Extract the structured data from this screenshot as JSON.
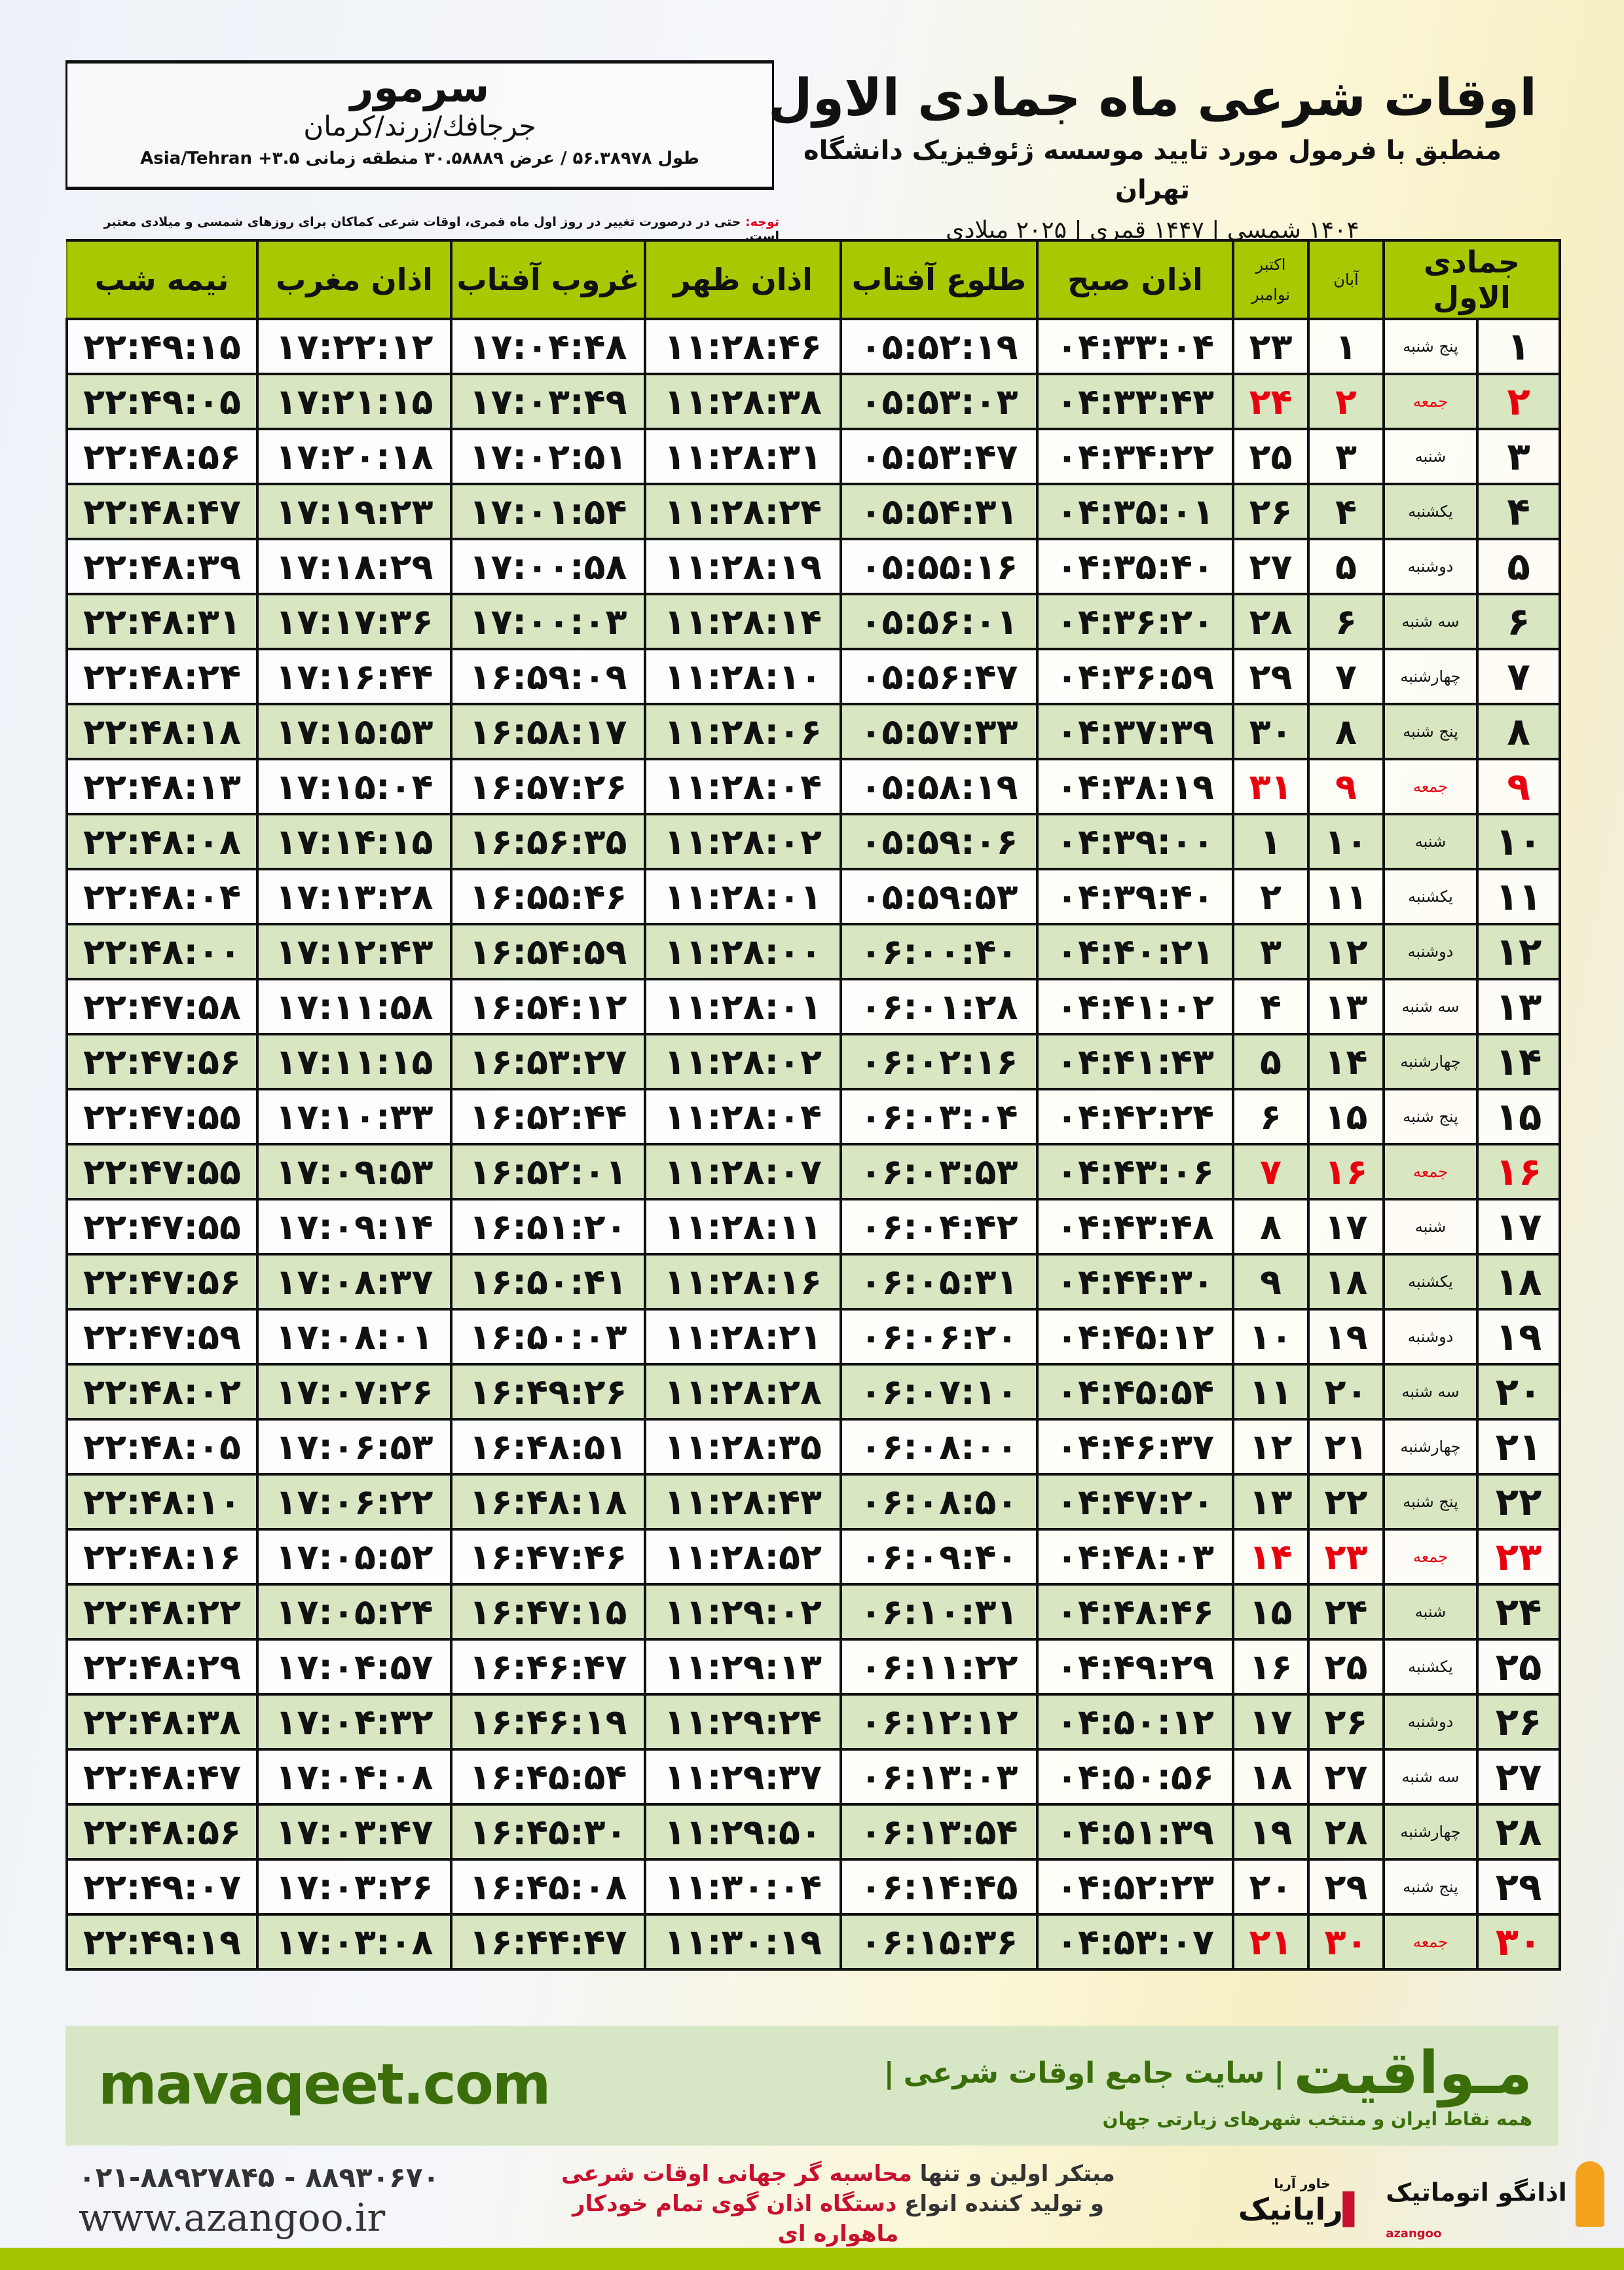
{
  "location": {
    "city": "سرمور",
    "region": "جرجافك/زرند/كرمان",
    "coords": "طول ۵۶.۳۸۹۷۸ / عرض ۳۰.۵۸۸۸۹ منطقه زمانی ۳.۵+ Asia/Tehran"
  },
  "header": {
    "title": "اوقات شرعی ماه جمادی الاول",
    "subtitle": "منطبق با فرمول مورد تایید موسسه ژئوفیزیک دانشگاه تهران",
    "years": "۱۴۰۴ شمسی | ۱۴۴۷ قمری | ۲۰۲۵ میلادی"
  },
  "note": {
    "label": "توجه:",
    "text": " حتی در درصورت تغییر در روز اول ماه قمری، اوقات شرعی کماکان برای روزهای شمسی و میلادی معتبر است."
  },
  "colors": {
    "header_bg": "#a8c800",
    "alt_row": "#d8e6c2",
    "friday": "#e8000f",
    "banner": "#d7e7c6",
    "brand_green": "#3b6e0a"
  },
  "table": {
    "headers": {
      "hijri": "جمادی الاول",
      "aban": "آبان",
      "greg1": "اکتبر",
      "greg2": "نوامبر",
      "sobh": "اذان صبح",
      "tolu": "طلوع آفتاب",
      "zohr": "اذان ظهر",
      "ghorub": "غروب آفتاب",
      "maghreb": "اذان مغرب",
      "nime": "نیمه شب"
    },
    "rows": [
      [
        "۱",
        "پنج شنبه",
        "۱",
        "۲۳",
        "۰۴:۳۳:۰۴",
        "۰۵:۵۲:۱۹",
        "۱۱:۲۸:۴۶",
        "۱۷:۰۴:۴۸",
        "۱۷:۲۲:۱۲",
        "۲۲:۴۹:۱۵"
      ],
      [
        "۲",
        "جمعه",
        "۲",
        "۲۴",
        "۰۴:۳۳:۴۳",
        "۰۵:۵۳:۰۳",
        "۱۱:۲۸:۳۸",
        "۱۷:۰۳:۴۹",
        "۱۷:۲۱:۱۵",
        "۲۲:۴۹:۰۵"
      ],
      [
        "۳",
        "شنبه",
        "۳",
        "۲۵",
        "۰۴:۳۴:۲۲",
        "۰۵:۵۳:۴۷",
        "۱۱:۲۸:۳۱",
        "۱۷:۰۲:۵۱",
        "۱۷:۲۰:۱۸",
        "۲۲:۴۸:۵۶"
      ],
      [
        "۴",
        "یکشنبه",
        "۴",
        "۲۶",
        "۰۴:۳۵:۰۱",
        "۰۵:۵۴:۳۱",
        "۱۱:۲۸:۲۴",
        "۱۷:۰۱:۵۴",
        "۱۷:۱۹:۲۳",
        "۲۲:۴۸:۴۷"
      ],
      [
        "۵",
        "دوشنبه",
        "۵",
        "۲۷",
        "۰۴:۳۵:۴۰",
        "۰۵:۵۵:۱۶",
        "۱۱:۲۸:۱۹",
        "۱۷:۰۰:۵۸",
        "۱۷:۱۸:۲۹",
        "۲۲:۴۸:۳۹"
      ],
      [
        "۶",
        "سه شنبه",
        "۶",
        "۲۸",
        "۰۴:۳۶:۲۰",
        "۰۵:۵۶:۰۱",
        "۱۱:۲۸:۱۴",
        "۱۷:۰۰:۰۳",
        "۱۷:۱۷:۳۶",
        "۲۲:۴۸:۳۱"
      ],
      [
        "۷",
        "چهارشنبه",
        "۷",
        "۲۹",
        "۰۴:۳۶:۵۹",
        "۰۵:۵۶:۴۷",
        "۱۱:۲۸:۱۰",
        "۱۶:۵۹:۰۹",
        "۱۷:۱۶:۴۴",
        "۲۲:۴۸:۲۴"
      ],
      [
        "۸",
        "پنج شنبه",
        "۸",
        "۳۰",
        "۰۴:۳۷:۳۹",
        "۰۵:۵۷:۳۳",
        "۱۱:۲۸:۰۶",
        "۱۶:۵۸:۱۷",
        "۱۷:۱۵:۵۳",
        "۲۲:۴۸:۱۸"
      ],
      [
        "۹",
        "جمعه",
        "۹",
        "۳۱",
        "۰۴:۳۸:۱۹",
        "۰۵:۵۸:۱۹",
        "۱۱:۲۸:۰۴",
        "۱۶:۵۷:۲۶",
        "۱۷:۱۵:۰۴",
        "۲۲:۴۸:۱۳"
      ],
      [
        "۱۰",
        "شنبه",
        "۱۰",
        "۱",
        "۰۴:۳۹:۰۰",
        "۰۵:۵۹:۰۶",
        "۱۱:۲۸:۰۲",
        "۱۶:۵۶:۳۵",
        "۱۷:۱۴:۱۵",
        "۲۲:۴۸:۰۸"
      ],
      [
        "۱۱",
        "یکشنبه",
        "۱۱",
        "۲",
        "۰۴:۳۹:۴۰",
        "۰۵:۵۹:۵۳",
        "۱۱:۲۸:۰۱",
        "۱۶:۵۵:۴۶",
        "۱۷:۱۳:۲۸",
        "۲۲:۴۸:۰۴"
      ],
      [
        "۱۲",
        "دوشنبه",
        "۱۲",
        "۳",
        "۰۴:۴۰:۲۱",
        "۰۶:۰۰:۴۰",
        "۱۱:۲۸:۰۰",
        "۱۶:۵۴:۵۹",
        "۱۷:۱۲:۴۳",
        "۲۲:۴۸:۰۰"
      ],
      [
        "۱۳",
        "سه شنبه",
        "۱۳",
        "۴",
        "۰۴:۴۱:۰۲",
        "۰۶:۰۱:۲۸",
        "۱۱:۲۸:۰۱",
        "۱۶:۵۴:۱۲",
        "۱۷:۱۱:۵۸",
        "۲۲:۴۷:۵۸"
      ],
      [
        "۱۴",
        "چهارشنبه",
        "۱۴",
        "۵",
        "۰۴:۴۱:۴۳",
        "۰۶:۰۲:۱۶",
        "۱۱:۲۸:۰۲",
        "۱۶:۵۳:۲۷",
        "۱۷:۱۱:۱۵",
        "۲۲:۴۷:۵۶"
      ],
      [
        "۱۵",
        "پنج شنبه",
        "۱۵",
        "۶",
        "۰۴:۴۲:۲۴",
        "۰۶:۰۳:۰۴",
        "۱۱:۲۸:۰۴",
        "۱۶:۵۲:۴۴",
        "۱۷:۱۰:۳۳",
        "۲۲:۴۷:۵۵"
      ],
      [
        "۱۶",
        "جمعه",
        "۱۶",
        "۷",
        "۰۴:۴۳:۰۶",
        "۰۶:۰۳:۵۳",
        "۱۱:۲۸:۰۷",
        "۱۶:۵۲:۰۱",
        "۱۷:۰۹:۵۳",
        "۲۲:۴۷:۵۵"
      ],
      [
        "۱۷",
        "شنبه",
        "۱۷",
        "۸",
        "۰۴:۴۳:۴۸",
        "۰۶:۰۴:۴۲",
        "۱۱:۲۸:۱۱",
        "۱۶:۵۱:۲۰",
        "۱۷:۰۹:۱۴",
        "۲۲:۴۷:۵۵"
      ],
      [
        "۱۸",
        "یکشنبه",
        "۱۸",
        "۹",
        "۰۴:۴۴:۳۰",
        "۰۶:۰۵:۳۱",
        "۱۱:۲۸:۱۶",
        "۱۶:۵۰:۴۱",
        "۱۷:۰۸:۳۷",
        "۲۲:۴۷:۵۶"
      ],
      [
        "۱۹",
        "دوشنبه",
        "۱۹",
        "۱۰",
        "۰۴:۴۵:۱۲",
        "۰۶:۰۶:۲۰",
        "۱۱:۲۸:۲۱",
        "۱۶:۵۰:۰۳",
        "۱۷:۰۸:۰۱",
        "۲۲:۴۷:۵۹"
      ],
      [
        "۲۰",
        "سه شنبه",
        "۲۰",
        "۱۱",
        "۰۴:۴۵:۵۴",
        "۰۶:۰۷:۱۰",
        "۱۱:۲۸:۲۸",
        "۱۶:۴۹:۲۶",
        "۱۷:۰۷:۲۶",
        "۲۲:۴۸:۰۲"
      ],
      [
        "۲۱",
        "چهارشنبه",
        "۲۱",
        "۱۲",
        "۰۴:۴۶:۳۷",
        "۰۶:۰۸:۰۰",
        "۱۱:۲۸:۳۵",
        "۱۶:۴۸:۵۱",
        "۱۷:۰۶:۵۳",
        "۲۲:۴۸:۰۵"
      ],
      [
        "۲۲",
        "پنج شنبه",
        "۲۲",
        "۱۳",
        "۰۴:۴۷:۲۰",
        "۰۶:۰۸:۵۰",
        "۱۱:۲۸:۴۳",
        "۱۶:۴۸:۱۸",
        "۱۷:۰۶:۲۲",
        "۲۲:۴۸:۱۰"
      ],
      [
        "۲۳",
        "جمعه",
        "۲۳",
        "۱۴",
        "۰۴:۴۸:۰۳",
        "۰۶:۰۹:۴۰",
        "۱۱:۲۸:۵۲",
        "۱۶:۴۷:۴۶",
        "۱۷:۰۵:۵۲",
        "۲۲:۴۸:۱۶"
      ],
      [
        "۲۴",
        "شنبه",
        "۲۴",
        "۱۵",
        "۰۴:۴۸:۴۶",
        "۰۶:۱۰:۳۱",
        "۱۱:۲۹:۰۲",
        "۱۶:۴۷:۱۵",
        "۱۷:۰۵:۲۴",
        "۲۲:۴۸:۲۲"
      ],
      [
        "۲۵",
        "یکشنبه",
        "۲۵",
        "۱۶",
        "۰۴:۴۹:۲۹",
        "۰۶:۱۱:۲۲",
        "۱۱:۲۹:۱۳",
        "۱۶:۴۶:۴۷",
        "۱۷:۰۴:۵۷",
        "۲۲:۴۸:۲۹"
      ],
      [
        "۲۶",
        "دوشنبه",
        "۲۶",
        "۱۷",
        "۰۴:۵۰:۱۲",
        "۰۶:۱۲:۱۲",
        "۱۱:۲۹:۲۴",
        "۱۶:۴۶:۱۹",
        "۱۷:۰۴:۳۲",
        "۲۲:۴۸:۳۸"
      ],
      [
        "۲۷",
        "سه شنبه",
        "۲۷",
        "۱۸",
        "۰۴:۵۰:۵۶",
        "۰۶:۱۳:۰۳",
        "۱۱:۲۹:۳۷",
        "۱۶:۴۵:۵۴",
        "۱۷:۰۴:۰۸",
        "۲۲:۴۸:۴۷"
      ],
      [
        "۲۸",
        "چهارشنبه",
        "۲۸",
        "۱۹",
        "۰۴:۵۱:۳۹",
        "۰۶:۱۳:۵۴",
        "۱۱:۲۹:۵۰",
        "۱۶:۴۵:۳۰",
        "۱۷:۰۳:۴۷",
        "۲۲:۴۸:۵۶"
      ],
      [
        "۲۹",
        "پنج شنبه",
        "۲۹",
        "۲۰",
        "۰۴:۵۲:۲۳",
        "۰۶:۱۴:۴۵",
        "۱۱:۳۰:۰۴",
        "۱۶:۴۵:۰۸",
        "۱۷:۰۳:۲۶",
        "۲۲:۴۹:۰۷"
      ],
      [
        "۳۰",
        "جمعه",
        "۳۰",
        "۲۱",
        "۰۴:۵۳:۰۷",
        "۰۶:۱۵:۳۶",
        "۱۱:۳۰:۱۹",
        "۱۶:۴۴:۴۷",
        "۱۷:۰۳:۰۸",
        "۲۲:۴۹:۱۹"
      ]
    ]
  },
  "banner": {
    "site": "mavaqeet.com",
    "brand": "مـواقیت",
    "separator": "|",
    "tagline": "سایت جامع اوقات شرعی",
    "sub": "همه نقاط ایران و منتخب شهرهای زیارتی جهان"
  },
  "footer": {
    "phone": "۰۲۱-۸۸۹۲۷۸۴۵ - ۸۸۹۳۰۶۷۰",
    "url": "www.azangoo.ir",
    "promo1a": "مبتکر اولین و تنها ",
    "promo1b": "محاسبه گر جهانی اوقات شرعی",
    "promo2a": "و تولید کننده انواع ",
    "promo2b": "دستگاه اذان گوی تمام خودکار ماهواره ای",
    "logo_rayanik": "رایانیک",
    "logo_rayanik_small": "خاور آریا",
    "logo_azangoo": "اذانگو اتوماتیک",
    "logo_azangoo_sub": "azangoo"
  }
}
